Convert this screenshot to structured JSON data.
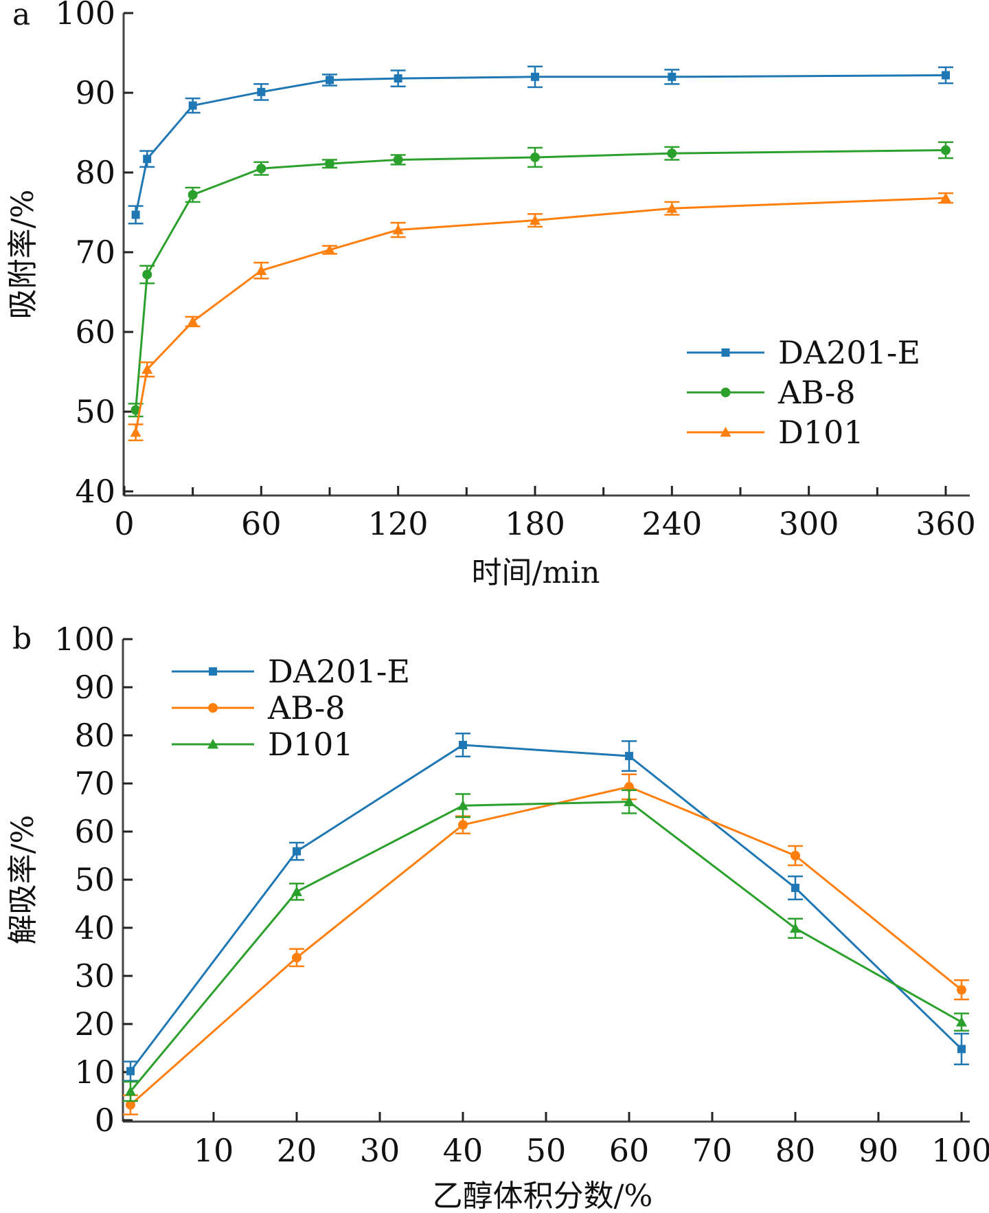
{
  "chart_data": [
    {
      "panel": "a",
      "type": "line",
      "title": "",
      "xlabel": "时间/min",
      "ylabel": "吸附率/%",
      "xlim": [
        0,
        370
      ],
      "ylim": [
        40,
        100
      ],
      "xticks": [
        0,
        60,
        120,
        180,
        240,
        300,
        360
      ],
      "xminor_ticks": [
        30,
        90,
        150,
        210,
        270,
        330
      ],
      "yticks": [
        40,
        50,
        60,
        70,
        80,
        90,
        100
      ],
      "x": [
        5,
        10,
        30,
        60,
        90,
        120,
        180,
        240,
        360
      ],
      "legend_position": "center-right",
      "grid": false,
      "series": [
        {
          "name": "DA201-E",
          "color": "#1f77b4",
          "marker": "square",
          "values": [
            74.7,
            81.7,
            88.4,
            90.1,
            91.6,
            91.8,
            92.0,
            92.0,
            92.2
          ],
          "errors": [
            1.1,
            1.0,
            0.9,
            1.0,
            0.7,
            1.0,
            1.3,
            0.9,
            1.0
          ]
        },
        {
          "name": "AB-8",
          "color": "#2ca02c",
          "marker": "circle",
          "values": [
            50.2,
            67.2,
            77.2,
            80.5,
            81.1,
            81.6,
            81.9,
            82.4,
            82.8
          ],
          "errors": [
            0.8,
            1.1,
            0.9,
            0.8,
            0.5,
            0.6,
            1.2,
            0.8,
            1.0
          ]
        },
        {
          "name": "D101",
          "color": "#ff7f0e",
          "marker": "triangle",
          "values": [
            47.4,
            55.3,
            61.3,
            67.7,
            70.3,
            72.8,
            74.0,
            75.5,
            76.8
          ],
          "errors": [
            1.0,
            0.9,
            0.6,
            1.0,
            0.5,
            0.9,
            0.8,
            0.8,
            0.6
          ]
        }
      ]
    },
    {
      "panel": "b",
      "type": "line",
      "title": "",
      "xlabel": "乙醇体积分数/%",
      "ylabel": "解吸率/%",
      "xlim": [
        -1,
        101
      ],
      "ylim": [
        0,
        100
      ],
      "xticks": [
        10,
        20,
        30,
        40,
        50,
        60,
        70,
        80,
        90,
        100
      ],
      "yticks": [
        0,
        10,
        20,
        30,
        40,
        50,
        60,
        70,
        80,
        90,
        100
      ],
      "x": [
        0,
        20,
        40,
        60,
        80,
        100
      ],
      "legend_position": "top-left",
      "grid": false,
      "series": [
        {
          "name": "DA201-E",
          "color": "#1f77b4",
          "marker": "square",
          "values": [
            10.2,
            55.9,
            78.0,
            75.7,
            48.3,
            14.8
          ],
          "errors": [
            2.0,
            1.8,
            2.4,
            3.1,
            2.4,
            3.2
          ]
        },
        {
          "name": "AB-8",
          "color": "#ff7f0e",
          "marker": "circle",
          "values": [
            3.2,
            33.8,
            61.4,
            69.3,
            55.0,
            27.1
          ],
          "errors": [
            2.0,
            1.8,
            1.8,
            2.6,
            2.0,
            2.0
          ]
        },
        {
          "name": "D101",
          "color": "#2ca02c",
          "marker": "triangle",
          "values": [
            6.0,
            47.5,
            65.4,
            66.2,
            39.9,
            20.4
          ],
          "errors": [
            2.0,
            1.7,
            2.4,
            2.4,
            2.0,
            1.8
          ]
        }
      ]
    }
  ]
}
